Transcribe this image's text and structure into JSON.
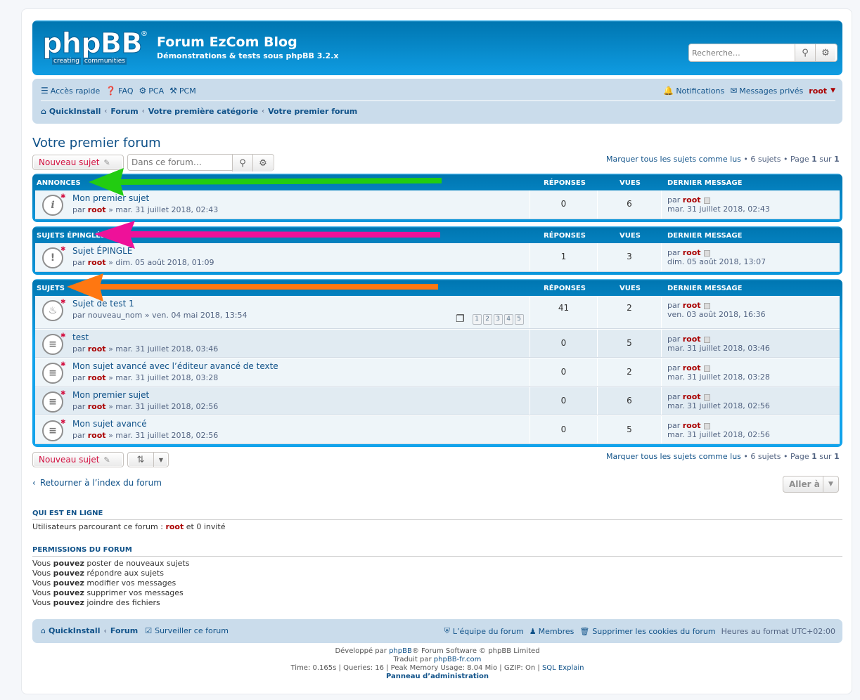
{
  "header": {
    "logo_text": "phpBB",
    "logo_reg": "®",
    "logo_sub1": "creating",
    "logo_sub2": "communities",
    "site_title": "Forum EzCom Blog",
    "site_desc": "Démonstrations & tests sous phpBB 3.2.x",
    "search_placeholder": "Recherche…"
  },
  "navbar": {
    "quick": "Accès rapide",
    "faq": "FAQ",
    "pca": "PCA",
    "pcm": "PCM",
    "notifications": "Notifications",
    "pm": "Messages privés",
    "user": "root",
    "crumbs": [
      "QuickInstall",
      "Forum",
      "Votre première catégorie",
      "Votre premier forum"
    ]
  },
  "page_title": "Votre premier forum",
  "actions": {
    "new_topic": "Nouveau sujet",
    "forum_search_placeholder": "Dans ce forum…",
    "mark_read": "Marquer tous les sujets comme lus",
    "topic_count": "• 6 sujets •",
    "page_label": "Page",
    "page_cur": "1",
    "page_of": "sur",
    "page_total": "1"
  },
  "columns": {
    "replies": "Réponses",
    "views": "Vues",
    "last": "Dernier message"
  },
  "sections": [
    {
      "title": "Annonces",
      "rows": [
        {
          "title": "Mon premier sujet",
          "by": "par",
          "author": "root",
          "date": "» mar. 31 juillet 2018, 02:43",
          "replies": "0",
          "views": "6",
          "last_by": "par",
          "last_author": "root",
          "last_date": "mar. 31 juillet 2018, 02:43",
          "icon": "i"
        }
      ]
    },
    {
      "title": "Sujets épinglés",
      "rows": [
        {
          "title": "Sujet ÉPINGLE",
          "by": "par",
          "author": "root",
          "date": "» dim. 05 août 2018, 01:09",
          "replies": "1",
          "views": "3",
          "last_by": "par",
          "last_author": "root",
          "last_date": "dim. 05 août 2018, 13:07",
          "icon": "!"
        }
      ]
    },
    {
      "title": "Sujets",
      "rows": [
        {
          "title": "Sujet de test 1",
          "by": "par",
          "author": "nouveau_nom",
          "date": "» ven. 04 mai 2018, 13:54",
          "replies": "41",
          "views": "2",
          "last_by": "par",
          "last_author": "root",
          "last_date": "ven. 03 août 2018, 16:36",
          "icon": "♨",
          "pages": [
            "1",
            "2",
            "3",
            "4",
            "5"
          ]
        },
        {
          "title": "test",
          "by": "par",
          "author": "root",
          "date": "» mar. 31 juillet 2018, 03:46",
          "replies": "0",
          "views": "5",
          "last_by": "par",
          "last_author": "root",
          "last_date": "mar. 31 juillet 2018, 03:46",
          "icon": "≡"
        },
        {
          "title": "Mon sujet avancé avec l’éditeur avancé de texte",
          "by": "par",
          "author": "root",
          "date": "» mar. 31 juillet 2018, 03:28",
          "replies": "0",
          "views": "2",
          "last_by": "par",
          "last_author": "root",
          "last_date": "mar. 31 juillet 2018, 03:28",
          "icon": "≡"
        },
        {
          "title": "Mon premier sujet",
          "by": "par",
          "author": "root",
          "date": "» mar. 31 juillet 2018, 02:56",
          "replies": "0",
          "views": "6",
          "last_by": "par",
          "last_author": "root",
          "last_date": "mar. 31 juillet 2018, 02:56",
          "icon": "≡"
        },
        {
          "title": "Mon sujet avancé",
          "by": "par",
          "author": "root",
          "date": "» mar. 31 juillet 2018, 02:56",
          "replies": "0",
          "views": "5",
          "last_by": "par",
          "last_author": "root",
          "last_date": "mar. 31 juillet 2018, 02:56",
          "icon": "≡"
        }
      ]
    }
  ],
  "bottom": {
    "return_link": "Retourner à l’index du forum",
    "goto": "Aller à"
  },
  "online": {
    "title": "Qui est en ligne",
    "text_pre": "Utilisateurs parcourant ce forum :",
    "user": "root",
    "text_post": "et 0 invité"
  },
  "permissions": {
    "title": "Permissions du forum",
    "lines": [
      {
        "pre": "Vous",
        "bold": "pouvez",
        "post": "poster de nouveaux sujets"
      },
      {
        "pre": "Vous",
        "bold": "pouvez",
        "post": "répondre aux sujets"
      },
      {
        "pre": "Vous",
        "bold": "pouvez",
        "post": "modifier vos messages"
      },
      {
        "pre": "Vous",
        "bold": "pouvez",
        "post": "supprimer vos messages"
      },
      {
        "pre": "Vous",
        "bold": "pouvez",
        "post": "joindre des fichiers"
      }
    ]
  },
  "footer": {
    "home": "QuickInstall",
    "forum": "Forum",
    "watch": "Surveiller ce forum",
    "team": "L’équipe du forum",
    "members": "Membres",
    "cookies": "Supprimer les cookies du forum",
    "tz": "Heures au format UTC+02:00",
    "line1_pre": "Développé par",
    "line1_link": "phpBB",
    "line1_post": "® Forum Software © phpBB Limited",
    "line2_pre": "Traduit par",
    "line2_link": "phpBB-fr.com",
    "line3": "Time: 0.165s | Queries: 16 | Peak Memory Usage: 8.04 Mio | GZIP: On |",
    "line3_link": "SQL Explain",
    "line4": "Panneau d’administration"
  },
  "colors": {
    "arrow_green": "#22cc11",
    "arrow_magenta": "#ee1199",
    "arrow_orange": "#ff7711"
  }
}
